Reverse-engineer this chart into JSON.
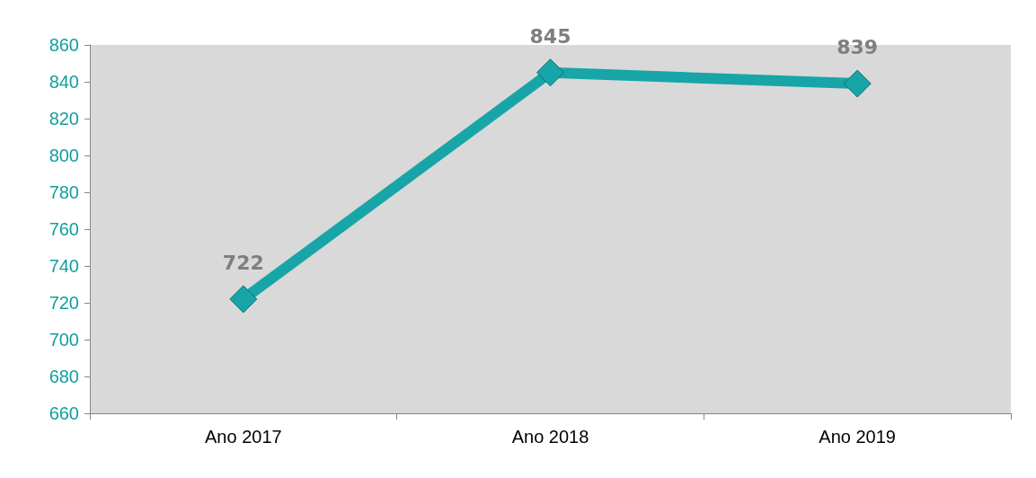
{
  "chart_data": {
    "type": "line",
    "categories": [
      "Ano 2017",
      "Ano 2018",
      "Ano 2019"
    ],
    "values": [
      722,
      845,
      839
    ],
    "color": "#17a5a8",
    "ylim": [
      660,
      860
    ],
    "yticks": [
      660,
      680,
      700,
      720,
      740,
      760,
      780,
      800,
      820,
      840,
      860
    ],
    "data_labels": true,
    "marker": "diamond"
  }
}
